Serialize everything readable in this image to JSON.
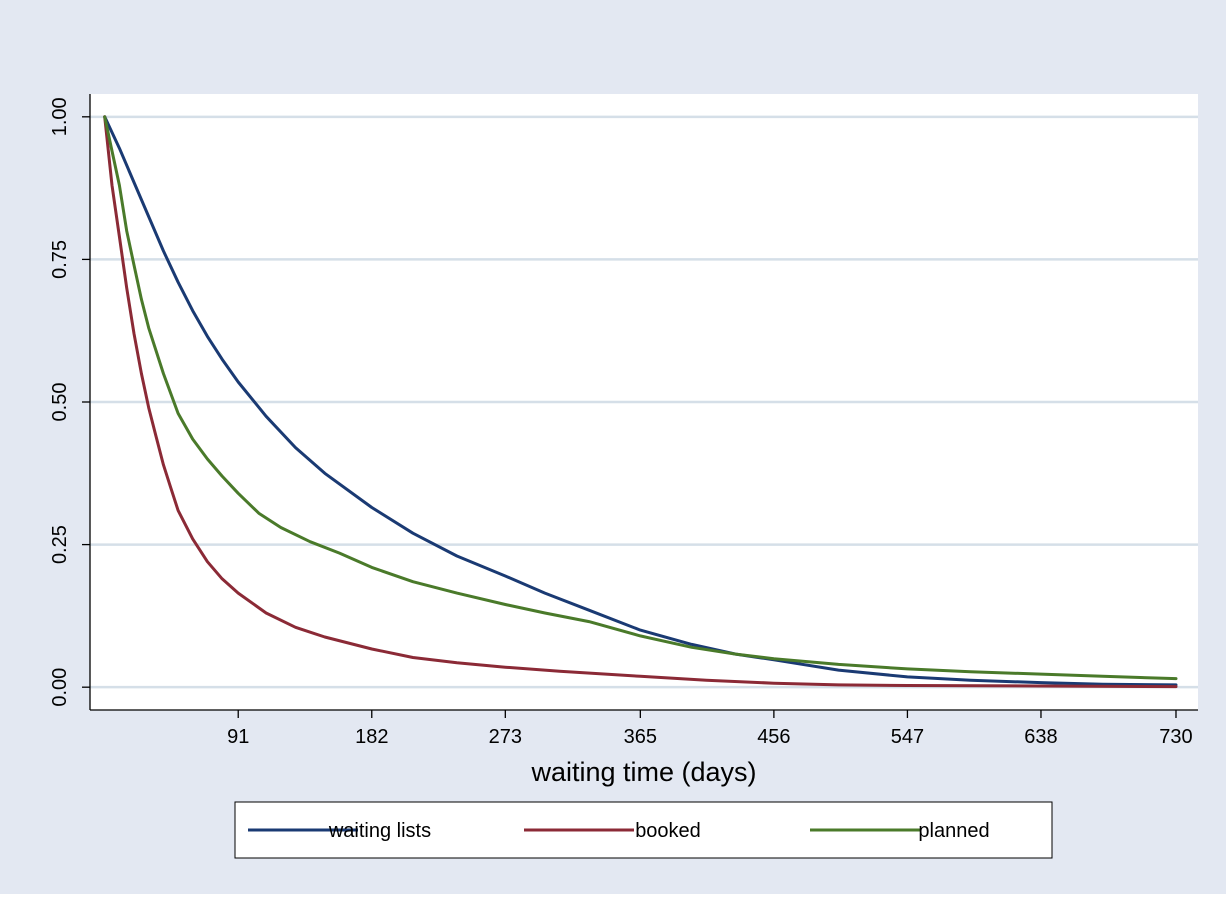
{
  "colors": {
    "outer_background": "#e3e8f2",
    "plot_background": "#ffffff",
    "gridline": "#d5dfe8",
    "axis": "#000000"
  },
  "chart_data": {
    "type": "line",
    "title": "",
    "xlabel": "waiting time (days)",
    "ylabel": "",
    "xlim": [
      -10,
      745
    ],
    "ylim": [
      -0.04,
      1.04
    ],
    "x_ticks": [
      91,
      182,
      273,
      365,
      456,
      547,
      638,
      730
    ],
    "y_ticks": [
      0,
      0.25,
      0.5,
      0.75,
      1
    ],
    "x_tick_labels": [
      "91",
      "182",
      "273",
      "365",
      "456",
      "547",
      "638",
      "730"
    ],
    "y_tick_labels": [
      "0.00",
      "0.25",
      "0.50",
      "0.75",
      "1.00"
    ],
    "grid": "horizontal",
    "legend_position": "bottom",
    "series": [
      {
        "name": "waiting lists",
        "color": "#1a3a73",
        "points": [
          [
            0,
            1.0
          ],
          [
            10,
            0.945
          ],
          [
            20,
            0.885
          ],
          [
            30,
            0.825
          ],
          [
            40,
            0.765
          ],
          [
            50,
            0.71
          ],
          [
            60,
            0.66
          ],
          [
            70,
            0.615
          ],
          [
            80,
            0.575
          ],
          [
            91,
            0.535
          ],
          [
            110,
            0.475
          ],
          [
            130,
            0.42
          ],
          [
            150,
            0.375
          ],
          [
            182,
            0.315
          ],
          [
            210,
            0.27
          ],
          [
            240,
            0.23
          ],
          [
            273,
            0.195
          ],
          [
            300,
            0.165
          ],
          [
            330,
            0.135
          ],
          [
            365,
            0.1
          ],
          [
            400,
            0.075
          ],
          [
            430,
            0.058
          ],
          [
            456,
            0.048
          ],
          [
            500,
            0.03
          ],
          [
            547,
            0.018
          ],
          [
            590,
            0.012
          ],
          [
            638,
            0.008
          ],
          [
            680,
            0.005
          ],
          [
            730,
            0.004
          ]
        ]
      },
      {
        "name": "booked",
        "color": "#8b2a36",
        "points": [
          [
            0,
            1.0
          ],
          [
            5,
            0.88
          ],
          [
            10,
            0.79
          ],
          [
            15,
            0.7
          ],
          [
            20,
            0.62
          ],
          [
            25,
            0.55
          ],
          [
            30,
            0.49
          ],
          [
            35,
            0.44
          ],
          [
            40,
            0.39
          ],
          [
            45,
            0.35
          ],
          [
            50,
            0.31
          ],
          [
            60,
            0.26
          ],
          [
            70,
            0.22
          ],
          [
            80,
            0.19
          ],
          [
            91,
            0.165
          ],
          [
            110,
            0.13
          ],
          [
            130,
            0.105
          ],
          [
            150,
            0.088
          ],
          [
            182,
            0.067
          ],
          [
            210,
            0.052
          ],
          [
            240,
            0.043
          ],
          [
            273,
            0.035
          ],
          [
            310,
            0.028
          ],
          [
            365,
            0.019
          ],
          [
            410,
            0.012
          ],
          [
            456,
            0.007
          ],
          [
            500,
            0.004
          ],
          [
            547,
            0.003
          ],
          [
            638,
            0.002
          ],
          [
            730,
            0.001
          ]
        ]
      },
      {
        "name": "planned",
        "color": "#4a7a2a",
        "points": [
          [
            0,
            1.0
          ],
          [
            5,
            0.94
          ],
          [
            10,
            0.88
          ],
          [
            15,
            0.8
          ],
          [
            20,
            0.74
          ],
          [
            25,
            0.68
          ],
          [
            30,
            0.63
          ],
          [
            40,
            0.55
          ],
          [
            50,
            0.48
          ],
          [
            60,
            0.435
          ],
          [
            70,
            0.4
          ],
          [
            80,
            0.37
          ],
          [
            91,
            0.34
          ],
          [
            105,
            0.305
          ],
          [
            120,
            0.28
          ],
          [
            140,
            0.255
          ],
          [
            160,
            0.235
          ],
          [
            182,
            0.21
          ],
          [
            210,
            0.185
          ],
          [
            240,
            0.165
          ],
          [
            273,
            0.145
          ],
          [
            300,
            0.13
          ],
          [
            330,
            0.115
          ],
          [
            365,
            0.09
          ],
          [
            400,
            0.07
          ],
          [
            430,
            0.058
          ],
          [
            456,
            0.05
          ],
          [
            500,
            0.04
          ],
          [
            547,
            0.032
          ],
          [
            590,
            0.027
          ],
          [
            638,
            0.023
          ],
          [
            680,
            0.019
          ],
          [
            730,
            0.015
          ]
        ]
      }
    ]
  }
}
